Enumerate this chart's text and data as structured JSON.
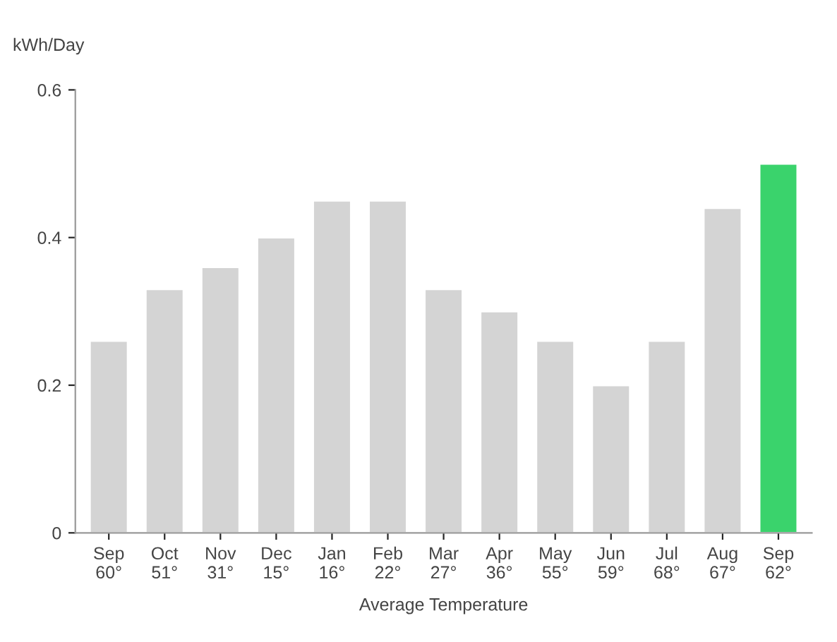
{
  "chart_data": {
    "type": "bar",
    "categories": [
      "Sep\n60°",
      "Oct\n51°",
      "Nov\n31°",
      "Dec\n15°",
      "Jan\n16°",
      "Feb\n22°",
      "Mar\n27°",
      "Apr\n36°",
      "May\n55°",
      "Jun\n59°",
      "Jul\n68°",
      "Aug\n67°",
      "Sep\n62°"
    ],
    "values": [
      0.26,
      0.33,
      0.36,
      0.4,
      0.45,
      0.45,
      0.33,
      0.3,
      0.26,
      0.2,
      0.26,
      0.44,
      0.5
    ],
    "colors": [
      "#d4d4d4",
      "#d4d4d4",
      "#d4d4d4",
      "#d4d4d4",
      "#d4d4d4",
      "#d4d4d4",
      "#d4d4d4",
      "#d4d4d4",
      "#d4d4d4",
      "#d4d4d4",
      "#d4d4d4",
      "#d4d4d4",
      "#3ad36c"
    ],
    "ylabel": "kWh/Day",
    "xlabel": "Average Temperature",
    "ylim": [
      0,
      0.6
    ],
    "yticks": [
      0,
      0.2,
      0.4,
      0.6
    ],
    "grid": false
  }
}
